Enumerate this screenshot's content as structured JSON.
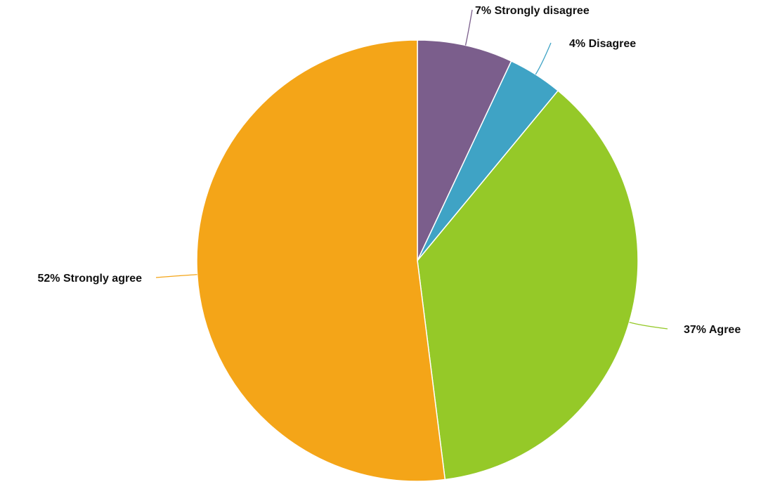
{
  "chart_data": {
    "type": "pie",
    "title": "",
    "start_angle_deg": 0,
    "direction": "clockwise",
    "slices": [
      {
        "label": "Strongly disagree",
        "value": 7,
        "display": "7% Strongly disagree",
        "color": "#7b5e8c"
      },
      {
        "label": "Disagree",
        "value": 4,
        "display": "4% Disagree",
        "color": "#3fa3c5"
      },
      {
        "label": "Agree",
        "value": 37,
        "display": "37% Agree",
        "color": "#95c928"
      },
      {
        "label": "Strongly agree",
        "value": 52,
        "display": "52% Strongly agree",
        "color": "#f4a518"
      }
    ],
    "legend": "none",
    "label_style": "outside-with-leader-lines"
  }
}
